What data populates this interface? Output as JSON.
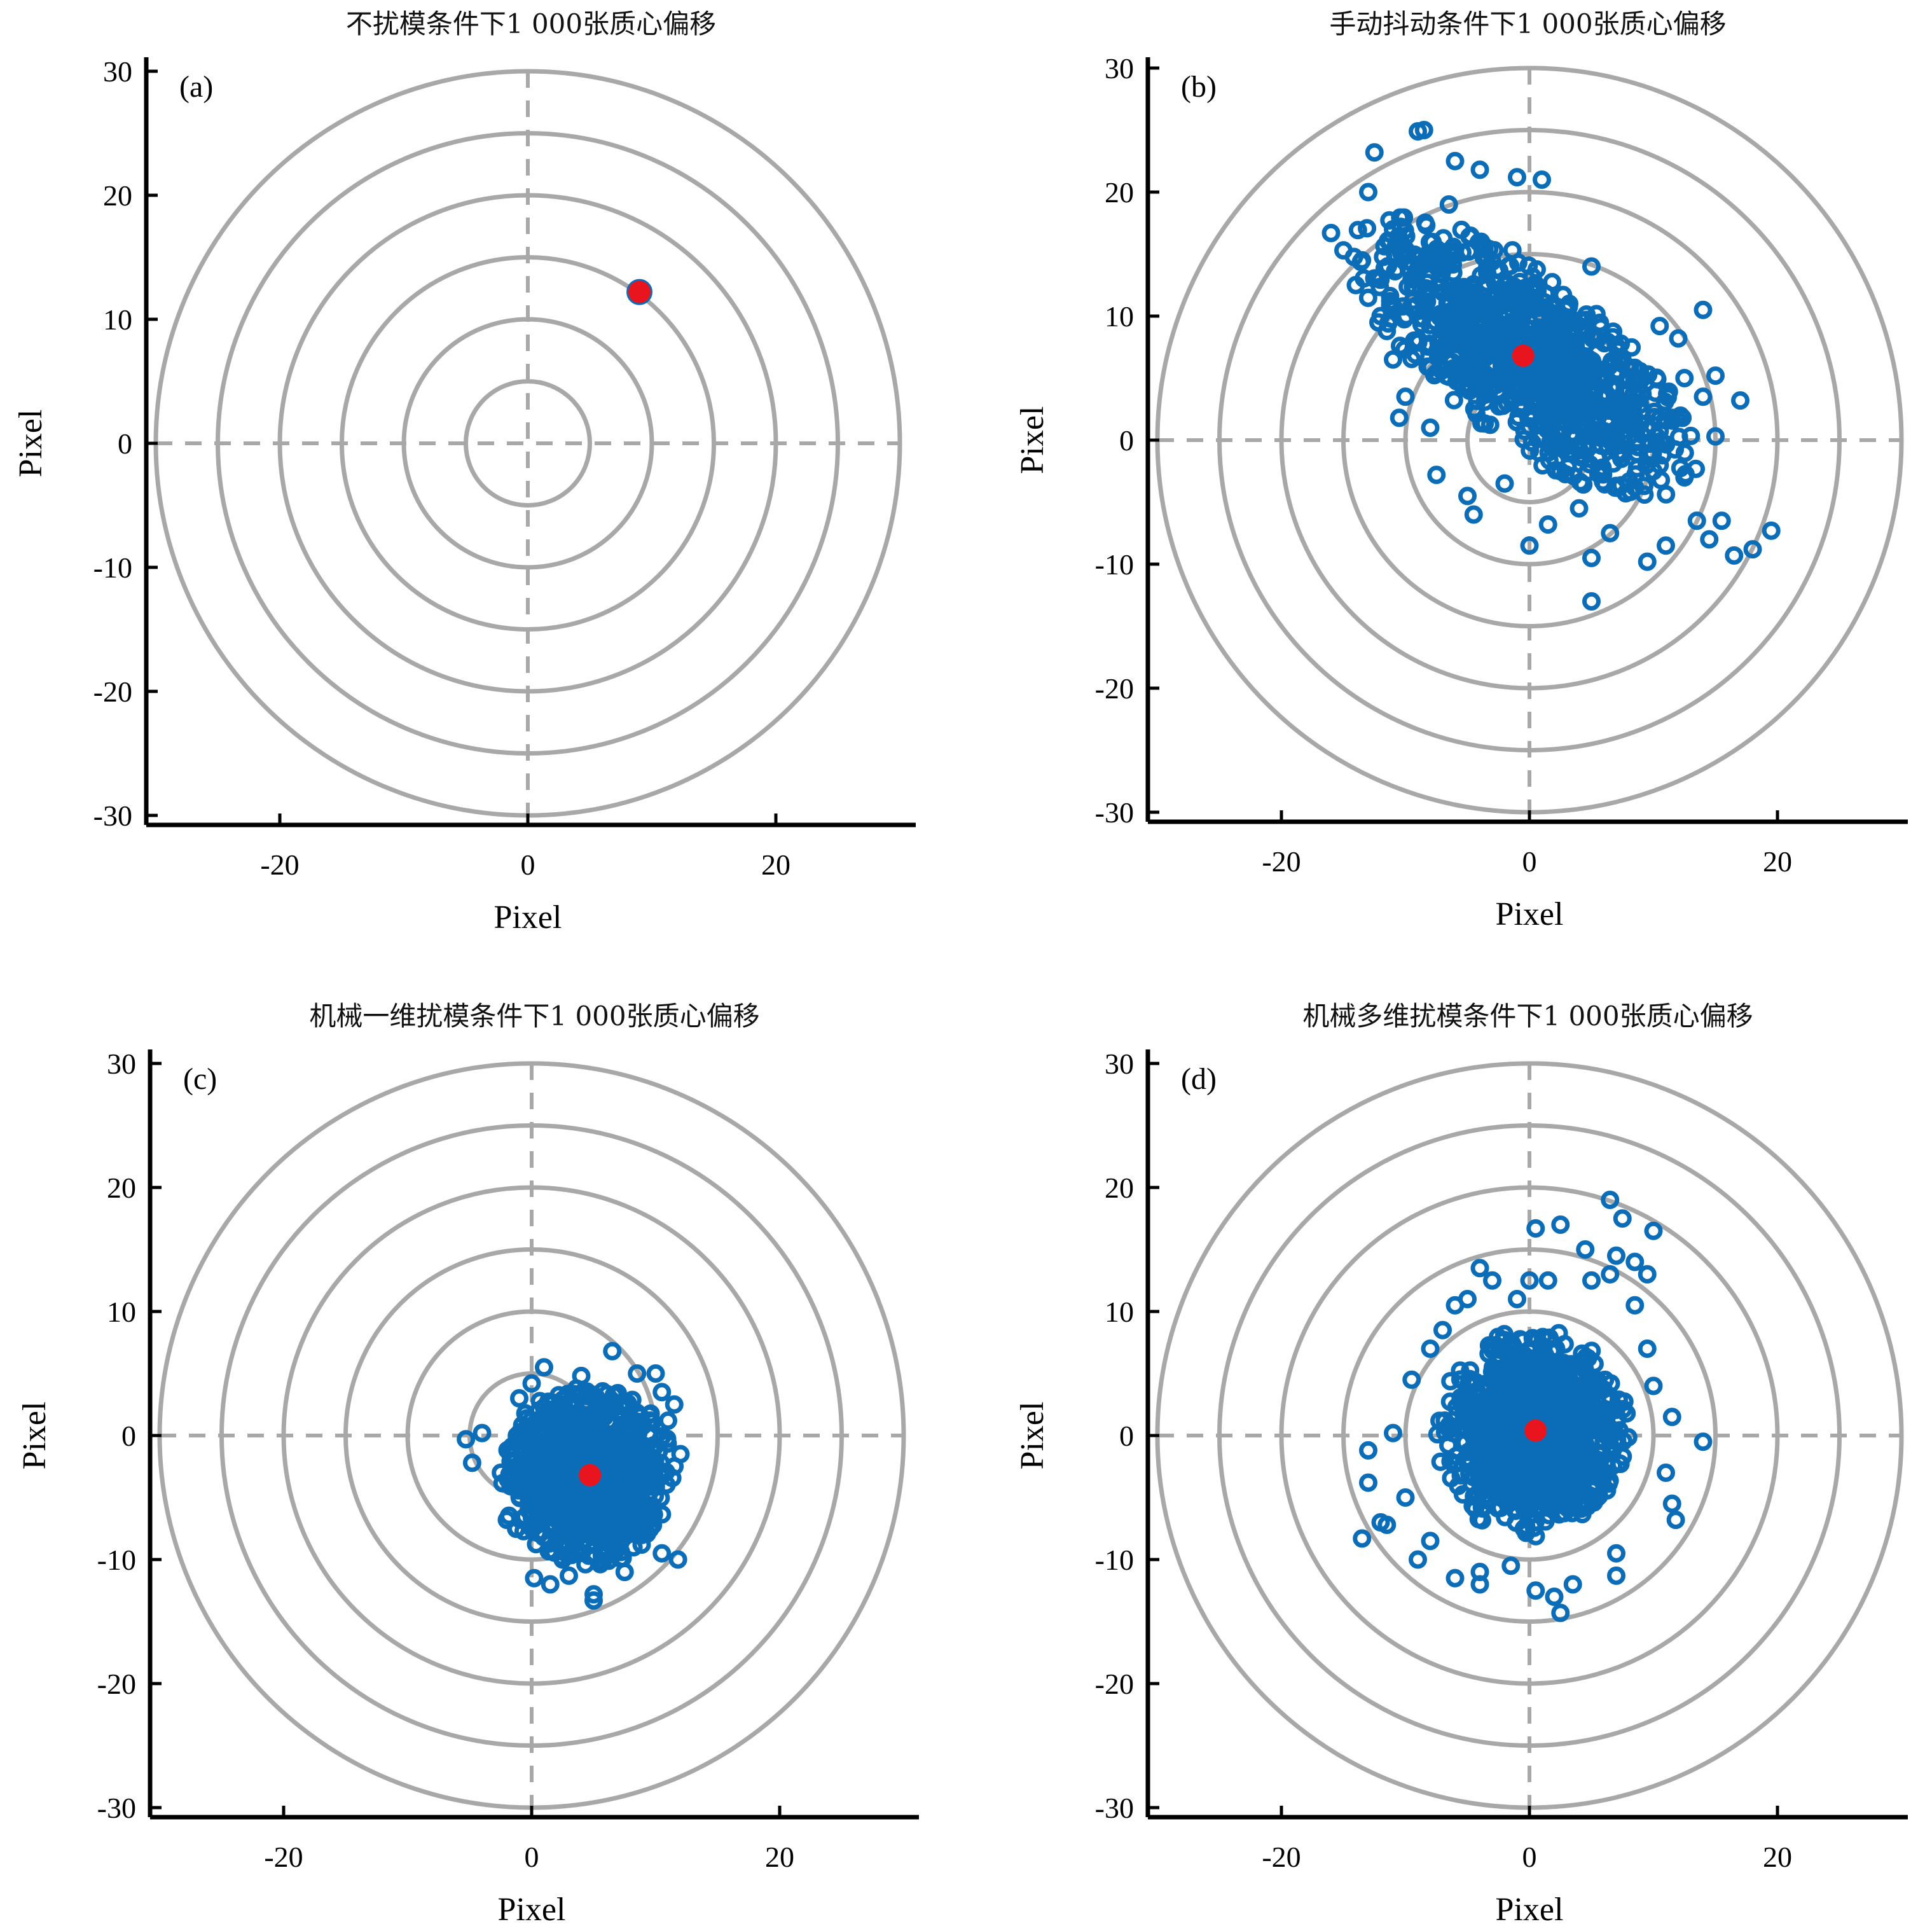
{
  "colors": {
    "points": "#0b6db7",
    "centroid": "#e8141e",
    "rings": "#a8a8a8",
    "axes": "#000000"
  },
  "chart_data": [
    {
      "type": "scatter",
      "panel_label": "(a)",
      "title": "不扰模条件下1 000张质心偏移",
      "xlabel": "Pixel",
      "ylabel": "Pixel",
      "xlim": [
        -31,
        31
      ],
      "ylim": [
        -31,
        30
      ],
      "xticks": [
        -20,
        0,
        20
      ],
      "yticks": [
        30,
        20,
        10,
        0,
        -10,
        -20,
        -30
      ],
      "ring_radii": [
        5,
        10,
        15,
        20,
        25,
        30
      ],
      "dashed_crosshair": true,
      "centroid": [
        9.0,
        12.2
      ],
      "cluster": {
        "count": 8,
        "center": [
          9.0,
          12.2
        ],
        "sx": 0.25,
        "sy": 0.25,
        "rot_deg": 0,
        "clip_r": 0.6
      },
      "outliers": []
    },
    {
      "type": "scatter",
      "panel_label": "(b)",
      "title": "手动抖动条件下1 000张质心偏移",
      "xlabel": "Pixel",
      "ylabel": "Pixel",
      "xlim": [
        -31,
        31
      ],
      "ylim": [
        -31,
        30
      ],
      "xticks": [
        -20,
        0,
        20
      ],
      "yticks": [
        30,
        20,
        10,
        0,
        -10,
        -20,
        -30
      ],
      "ring_radii": [
        5,
        10,
        15,
        20,
        25,
        30
      ],
      "dashed_crosshair": true,
      "centroid": [
        -0.5,
        6.8
      ],
      "cluster": {
        "count": 900,
        "center": [
          -0.5,
          6.8
        ],
        "sx": 8.5,
        "sy": 3.3,
        "rot_deg": -38,
        "clip_r": 2.0
      },
      "outliers": [
        [
          -16,
          16.7
        ],
        [
          -15,
          15.3
        ],
        [
          -14,
          12.5
        ],
        [
          -12.5,
          23.2
        ],
        [
          -13,
          20
        ],
        [
          -9,
          24.9
        ],
        [
          -8.5,
          25
        ],
        [
          -6,
          22.5
        ],
        [
          -4,
          21.8
        ],
        [
          -1,
          21.2
        ],
        [
          1,
          21
        ],
        [
          -13.5,
          14.5
        ],
        [
          -12,
          10
        ],
        [
          -11.5,
          8.8
        ],
        [
          -11,
          6.5
        ],
        [
          -10,
          3.5
        ],
        [
          -10.5,
          1.8
        ],
        [
          -8,
          1.0
        ],
        [
          -7.5,
          -2.8
        ],
        [
          -5,
          -4.5
        ],
        [
          -4.5,
          -6
        ],
        [
          -2,
          -3.5
        ],
        [
          0,
          -8.5
        ],
        [
          1.5,
          -6.8
        ],
        [
          5,
          -13
        ],
        [
          5,
          -9.5
        ],
        [
          9.5,
          -9.8
        ],
        [
          11,
          -8.5
        ],
        [
          13.5,
          -6.5
        ],
        [
          14,
          10.5
        ],
        [
          15,
          5.2
        ],
        [
          14,
          3.5
        ],
        [
          17,
          3.2
        ],
        [
          15,
          0.3
        ],
        [
          15.5,
          -6.5
        ],
        [
          16.5,
          -9.3
        ],
        [
          18,
          -8.8
        ],
        [
          19.5,
          -7.3
        ],
        [
          14.5,
          -8.0
        ],
        [
          11.5,
          1.8
        ],
        [
          12.5,
          5.0
        ],
        [
          12,
          8.2
        ],
        [
          10.5,
          9.2
        ],
        [
          7.5,
          6.5
        ],
        [
          5,
          14
        ],
        [
          6.5,
          -7.5
        ],
        [
          4,
          -5.5
        ],
        [
          8.5,
          -3.8
        ],
        [
          10,
          -2.5
        ],
        [
          12.5,
          -3.0
        ],
        [
          -6.5,
          19
        ],
        [
          -11,
          17
        ],
        [
          -9.5,
          13
        ]
      ]
    },
    {
      "type": "scatter",
      "panel_label": "(c)",
      "title": "机械一维扰模条件下1 000张质心偏移",
      "xlabel": "Pixel",
      "ylabel": "Pixel",
      "xlim": [
        -31,
        31
      ],
      "ylim": [
        -31,
        30
      ],
      "xticks": [
        -20,
        0,
        20
      ],
      "yticks": [
        30,
        20,
        10,
        0,
        -10,
        -20,
        -30
      ],
      "ring_radii": [
        5,
        10,
        15,
        20,
        25,
        30
      ],
      "dashed_crosshair": true,
      "centroid": [
        4.7,
        -3.2
      ],
      "cluster": {
        "count": 900,
        "center": [
          4.5,
          -3.3
        ],
        "sx": 3.6,
        "sy": 3.6,
        "rot_deg": -20,
        "clip_r": 2.0
      },
      "outliers": [
        [
          -5.3,
          -0.3
        ],
        [
          -4.8,
          -2.2
        ],
        [
          -4.0,
          0.2
        ],
        [
          -2.0,
          -6.8
        ],
        [
          -1.2,
          -7.5
        ],
        [
          0.2,
          -11.5
        ],
        [
          1.5,
          -12
        ],
        [
          3.0,
          -11.3
        ],
        [
          5.0,
          -12.8
        ],
        [
          5.0,
          -13.3
        ],
        [
          7.5,
          -11.0
        ],
        [
          10.5,
          -9.5
        ],
        [
          11.8,
          -10.0
        ],
        [
          12.0,
          -1.5
        ],
        [
          11.0,
          1.2
        ],
        [
          11.5,
          2.5
        ],
        [
          10.5,
          3.5
        ],
        [
          10.0,
          5.0
        ],
        [
          6.5,
          6.8
        ],
        [
          4.0,
          4.8
        ],
        [
          1.0,
          5.5
        ],
        [
          0.0,
          4.2
        ],
        [
          -1.0,
          3.0
        ],
        [
          -0.5,
          0.5
        ],
        [
          8.5,
          5.0
        ],
        [
          2.5,
          -10.0
        ]
      ]
    },
    {
      "type": "scatter",
      "panel_label": "(d)",
      "title": "机械多维扰模条件下1 000张质心偏移",
      "xlabel": "Pixel",
      "ylabel": "Pixel",
      "xlim": [
        -31,
        31
      ],
      "ylim": [
        -31,
        30
      ],
      "xticks": [
        -20,
        0,
        20
      ],
      "yticks": [
        30,
        20,
        10,
        0,
        -10,
        -20,
        -30
      ],
      "ring_radii": [
        5,
        10,
        15,
        20,
        25,
        30
      ],
      "dashed_crosshair": true,
      "centroid": [
        0.5,
        0.4
      ],
      "cluster": {
        "count": 900,
        "center": [
          0.3,
          0.2
        ],
        "sx": 3.9,
        "sy": 4.2,
        "rot_deg": 0,
        "clip_r": 2.0
      },
      "outliers": [
        [
          -13.5,
          -8.3
        ],
        [
          -13,
          -3.8
        ],
        [
          -13,
          -1.2
        ],
        [
          -12,
          -7.0
        ],
        [
          -11.5,
          -7.2
        ],
        [
          -9,
          -10
        ],
        [
          -8,
          -8.5
        ],
        [
          -10,
          -5.0
        ],
        [
          -11,
          0.2
        ],
        [
          -9.5,
          4.5
        ],
        [
          -8,
          7
        ],
        [
          -7,
          8.5
        ],
        [
          -6,
          10.5
        ],
        [
          -5,
          11
        ],
        [
          -4,
          13.5
        ],
        [
          -3,
          12.5
        ],
        [
          -1.0,
          11
        ],
        [
          0,
          12.5
        ],
        [
          1.5,
          12.5
        ],
        [
          0.5,
          16.7
        ],
        [
          2.5,
          17.0
        ],
        [
          4.5,
          15
        ],
        [
          5,
          12.5
        ],
        [
          6.5,
          13
        ],
        [
          7,
          14.5
        ],
        [
          7.5,
          17.5
        ],
        [
          6.5,
          19.0
        ],
        [
          8.5,
          14
        ],
        [
          9.5,
          13
        ],
        [
          10,
          16.5
        ],
        [
          8.5,
          10.5
        ],
        [
          9.5,
          7
        ],
        [
          10,
          4.0
        ],
        [
          11.5,
          1.5
        ],
        [
          14.0,
          -0.5
        ],
        [
          11.0,
          -3.0
        ],
        [
          11.5,
          -5.5
        ],
        [
          11.8,
          -6.8
        ],
        [
          7,
          -9.5
        ],
        [
          7,
          -11.3
        ],
        [
          3.5,
          -12
        ],
        [
          2,
          -13
        ],
        [
          2.5,
          -14.3
        ],
        [
          0.5,
          -12.5
        ],
        [
          -4,
          -12
        ],
        [
          -4,
          -11.0
        ],
        [
          -1.5,
          -10.5
        ],
        [
          -6,
          -11.5
        ]
      ]
    }
  ]
}
